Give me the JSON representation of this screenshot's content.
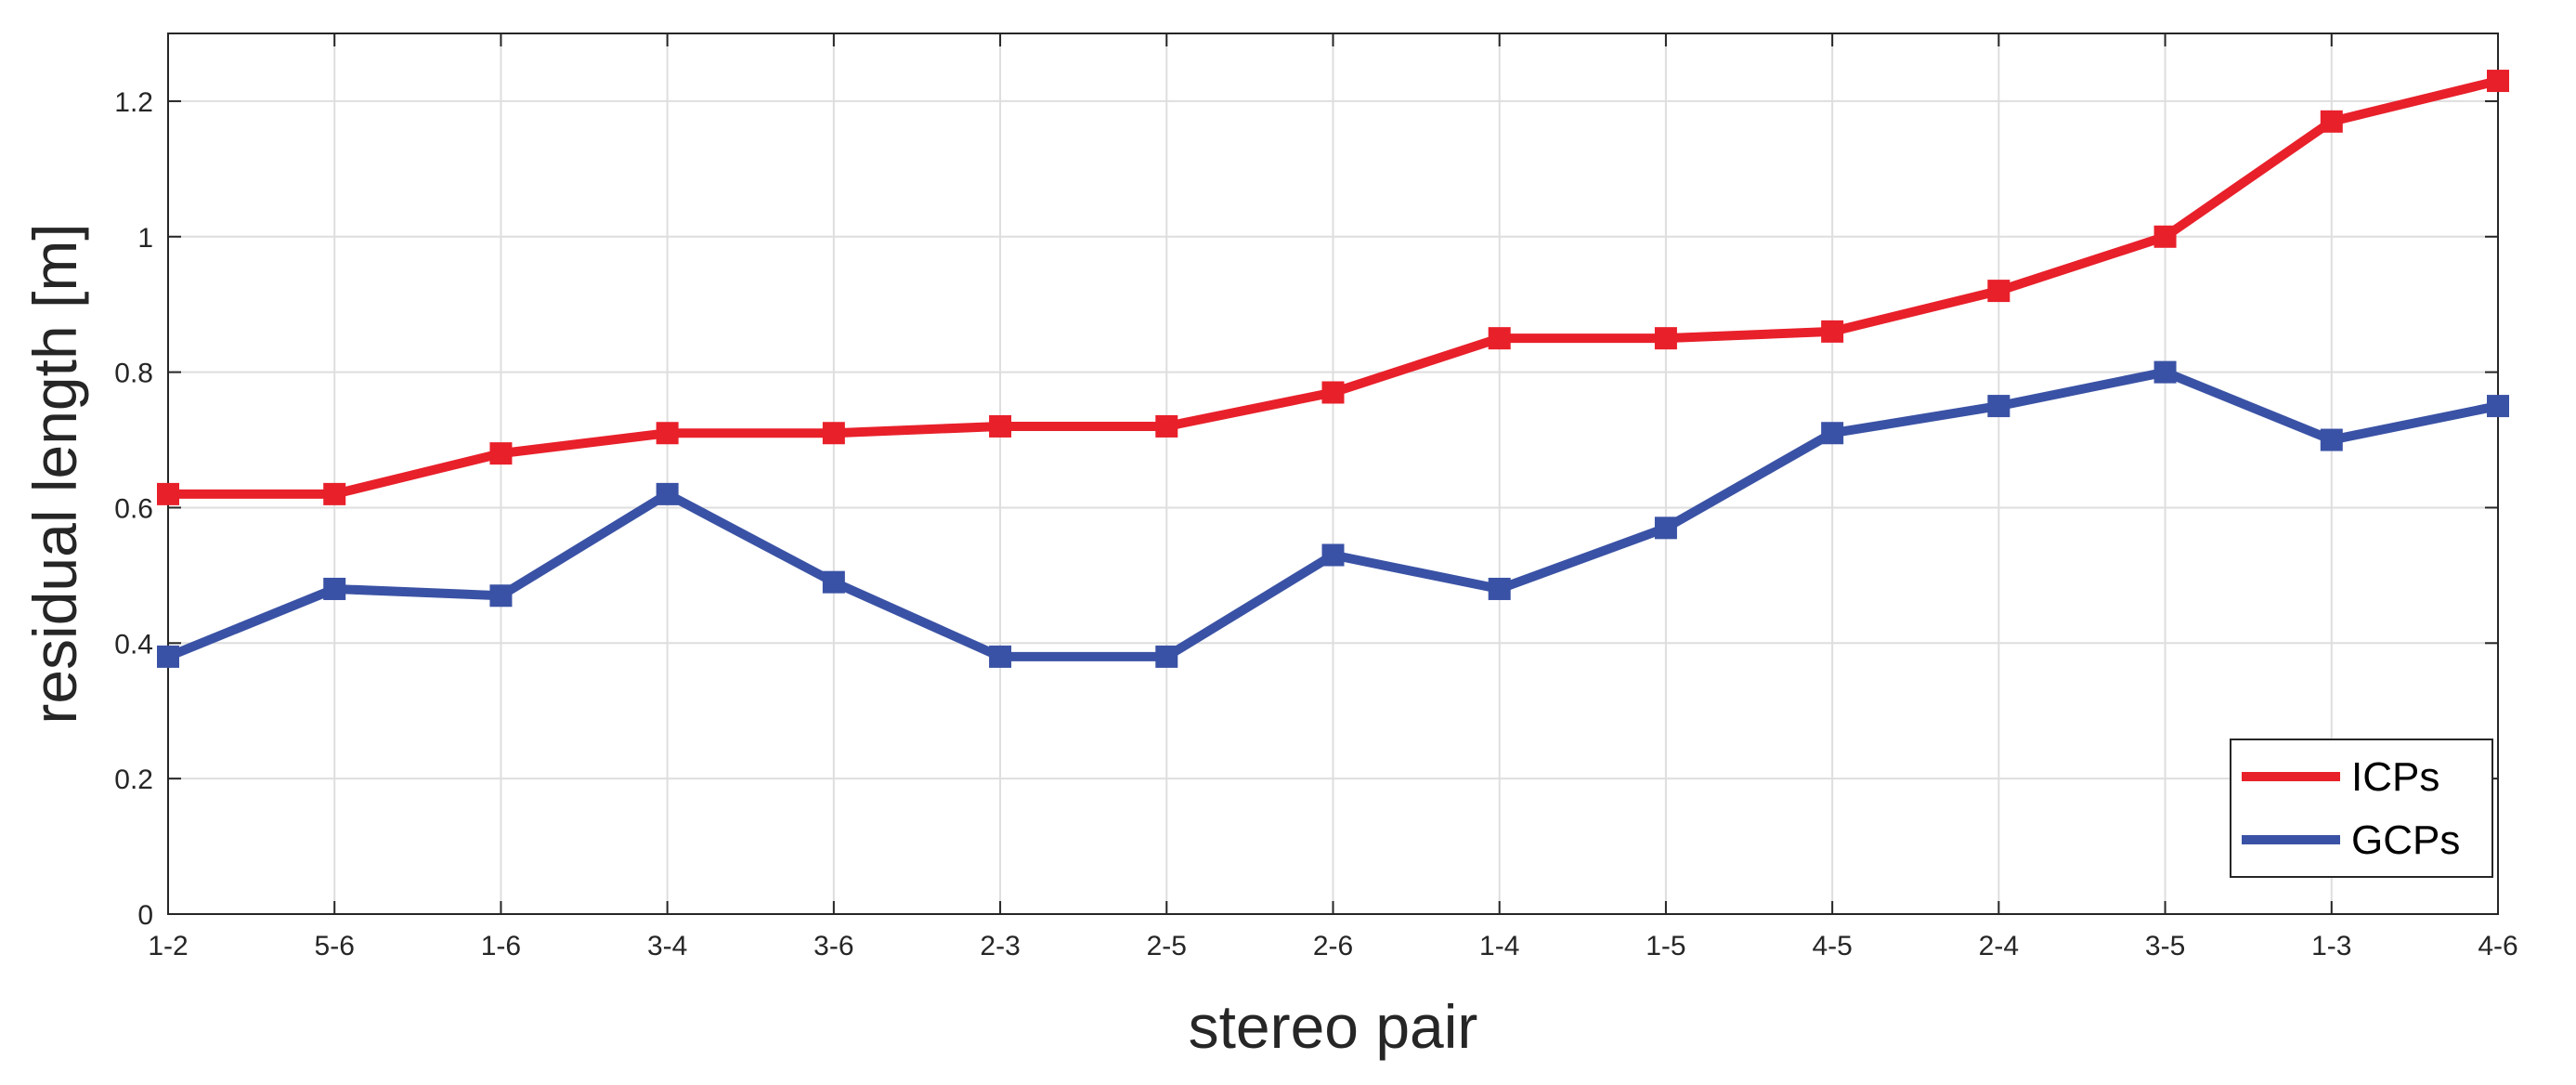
{
  "chart_data": {
    "type": "line",
    "categories": [
      "1-2",
      "5-6",
      "1-6",
      "3-4",
      "3-6",
      "2-3",
      "2-5",
      "2-6",
      "1-4",
      "1-5",
      "4-5",
      "2-4",
      "3-5",
      "1-3",
      "4-6"
    ],
    "series": [
      {
        "name": "ICPs",
        "color": "#e8202a",
        "marker": "square",
        "values": [
          0.62,
          0.62,
          0.68,
          0.71,
          0.71,
          0.72,
          0.72,
          0.77,
          0.85,
          0.85,
          0.86,
          0.92,
          1.0,
          1.17,
          1.23
        ]
      },
      {
        "name": "GCPs",
        "color": "#3a52a5",
        "marker": "square",
        "values": [
          0.38,
          0.48,
          0.47,
          0.62,
          0.49,
          0.38,
          0.38,
          0.53,
          0.48,
          0.57,
          0.71,
          0.75,
          0.8,
          0.7,
          0.75
        ]
      }
    ],
    "xlabel": "stereo pair",
    "ylabel": "residual length [m]",
    "ylim": [
      0,
      1.3
    ],
    "yticks": [
      "0",
      "0.2",
      "0.4",
      "0.6",
      "0.8",
      "1",
      "1.2"
    ],
    "grid": true,
    "legend_position": "bottom-right"
  }
}
